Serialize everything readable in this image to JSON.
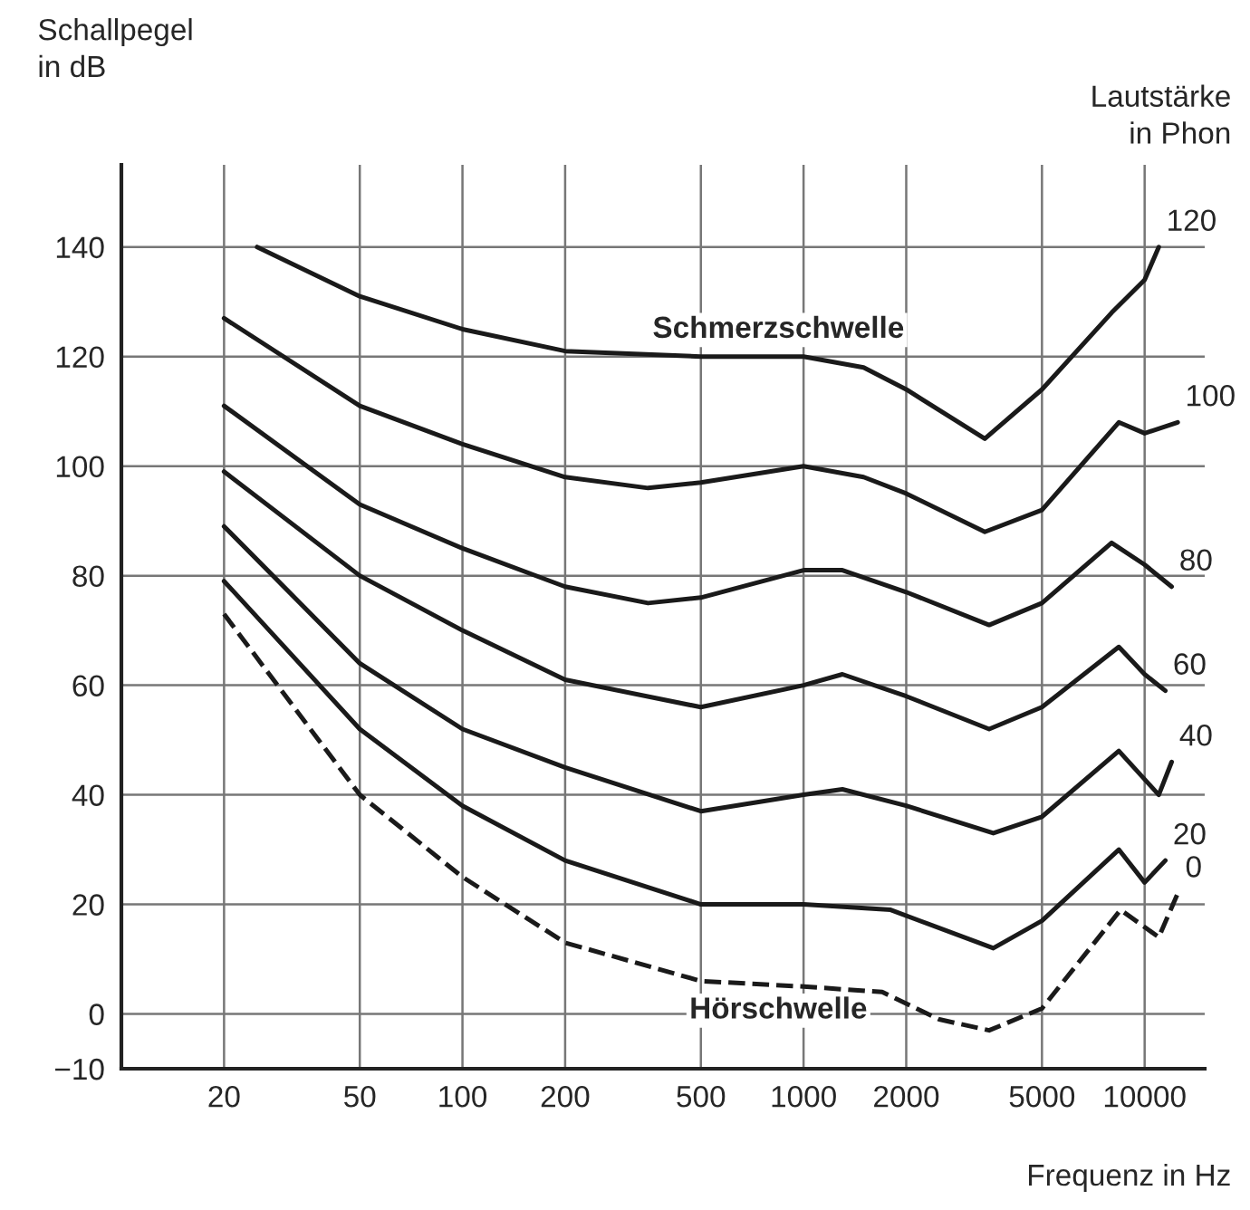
{
  "chart_data": {
    "type": "line",
    "xlabel": "Frequenz in Hz",
    "ylabel": "Schallpegel\nin dB",
    "series": [
      {
        "name": "120",
        "color": "#1a1a1a",
        "x": [
          25,
          50,
          100,
          200,
          500,
          1000,
          1500,
          2000,
          3400,
          5000,
          8000,
          10000,
          11000
        ],
        "values": [
          140,
          131,
          125,
          121,
          120,
          120,
          118,
          114,
          105,
          114,
          128,
          134,
          140
        ]
      },
      {
        "name": "100",
        "color": "#1a1a1a",
        "x": [
          20,
          50,
          100,
          200,
          350,
          500,
          1000,
          1500,
          2000,
          3400,
          5000,
          8400,
          10000,
          12500
        ],
        "values": [
          127,
          111,
          104,
          98,
          96,
          97,
          100,
          98,
          95,
          88,
          92,
          108,
          106,
          108
        ]
      },
      {
        "name": "80",
        "color": "#1a1a1a",
        "x": [
          20,
          50,
          100,
          200,
          350,
          500,
          1000,
          1300,
          2000,
          3500,
          5000,
          8000,
          10000,
          12000
        ],
        "values": [
          111,
          93,
          85,
          78,
          75,
          76,
          81,
          81,
          77,
          71,
          75,
          86,
          82,
          78
        ]
      },
      {
        "name": "60",
        "color": "#1a1a1a",
        "x": [
          20,
          50,
          100,
          200,
          500,
          1000,
          1300,
          2000,
          3500,
          5000,
          8400,
          10000,
          11500
        ],
        "values": [
          99,
          80,
          70,
          61,
          56,
          60,
          62,
          58,
          52,
          56,
          67,
          62,
          59
        ]
      },
      {
        "name": "40",
        "color": "#1a1a1a",
        "x": [
          20,
          50,
          100,
          200,
          500,
          1000,
          1300,
          2000,
          3600,
          5000,
          8400,
          11000,
          12000
        ],
        "values": [
          89,
          64,
          52,
          45,
          37,
          40,
          41,
          38,
          33,
          36,
          48,
          40,
          46
        ]
      },
      {
        "name": "20",
        "color": "#1a1a1a",
        "x": [
          20,
          50,
          100,
          200,
          500,
          1000,
          1800,
          3600,
          5000,
          8400,
          10000,
          11500
        ],
        "values": [
          79,
          52,
          38,
          28,
          20,
          20,
          19,
          12,
          17,
          30,
          24,
          28
        ]
      },
      {
        "name": "0",
        "color": "#1a1a1a",
        "line_style": "dashed",
        "x": [
          20,
          50,
          100,
          200,
          500,
          1000,
          1700,
          2500,
          3500,
          5000,
          8500,
          11000,
          12500
        ],
        "values": [
          73,
          40,
          25,
          13,
          6,
          5,
          4,
          -1,
          -3,
          1,
          19,
          14,
          22
        ]
      }
    ],
    "xlim": [
      10,
      15000
    ],
    "ylim": [
      -10,
      155
    ],
    "log": "x",
    "xticks": [
      20,
      50,
      100,
      200,
      500,
      1000,
      2000,
      5000,
      10000
    ],
    "yticks": [
      -10,
      0,
      20,
      40,
      60,
      80,
      100,
      120,
      140
    ],
    "grid": true,
    "legend": false,
    "marker": "none",
    "line_style": "solid",
    "annotations": [
      {
        "text": "Schmerzschwelle",
        "x": 1000,
        "y": 120
      },
      {
        "text": "Hörschwelle",
        "x": 1000,
        "y": 5
      },
      "Lautstärke\nin Phon"
    ]
  }
}
